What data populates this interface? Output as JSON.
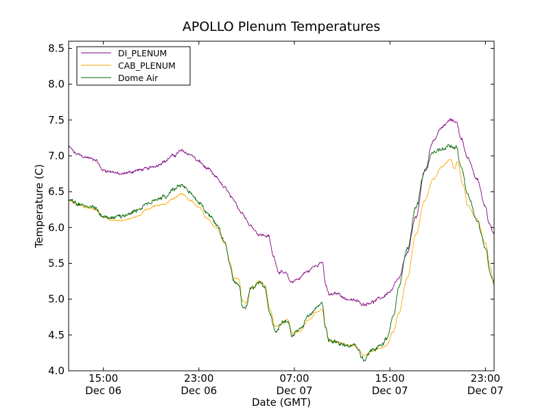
{
  "chart_data": {
    "type": "line",
    "title": "APOLLO Plenum Temperatures",
    "xlabel": "Date (GMT)",
    "ylabel": "Temperature (C)",
    "xlim": [
      11.0,
      35.5
    ],
    "ylim": [
      4.0,
      8.6
    ],
    "grid": false,
    "legend_position": "top-left",
    "yticks": [
      {
        "value": 4.0,
        "label": "4.0"
      },
      {
        "value": 4.5,
        "label": "4.5"
      },
      {
        "value": 5.0,
        "label": "5.0"
      },
      {
        "value": 5.5,
        "label": "5.5"
      },
      {
        "value": 6.0,
        "label": "6.0"
      },
      {
        "value": 6.5,
        "label": "6.5"
      },
      {
        "value": 7.0,
        "label": "7.0"
      },
      {
        "value": 7.5,
        "label": "7.5"
      },
      {
        "value": 8.0,
        "label": "8.0"
      },
      {
        "value": 8.5,
        "label": "8.5"
      }
    ],
    "xticks": [
      {
        "value": 13,
        "line1": "15:00",
        "line2": "Dec 06"
      },
      {
        "value": 18.5,
        "line1": "23:00",
        "line2": "Dec 06"
      },
      {
        "value": 24,
        "line1": "07:00",
        "line2": "Dec 07"
      },
      {
        "value": 29.5,
        "line1": "15:00",
        "line2": "Dec 07"
      },
      {
        "value": 35,
        "line1": "23:00",
        "line2": "Dec 07"
      }
    ],
    "series": [
      {
        "name": "DI_PLENUM",
        "color": "#800080",
        "noise": 0.025,
        "points": [
          [
            11.0,
            7.12
          ],
          [
            11.5,
            7.02
          ],
          [
            12.0,
            6.98
          ],
          [
            12.5,
            6.95
          ],
          [
            13.0,
            6.8
          ],
          [
            13.5,
            6.78
          ],
          [
            14.0,
            6.74
          ],
          [
            14.5,
            6.77
          ],
          [
            15.0,
            6.8
          ],
          [
            15.5,
            6.82
          ],
          [
            16.0,
            6.86
          ],
          [
            16.5,
            6.92
          ],
          [
            17.0,
            7.0
          ],
          [
            17.5,
            7.07
          ],
          [
            18.0,
            7.02
          ],
          [
            18.5,
            6.92
          ],
          [
            19.0,
            6.82
          ],
          [
            19.5,
            6.7
          ],
          [
            20.0,
            6.55
          ],
          [
            20.5,
            6.38
          ],
          [
            21.0,
            6.2
          ],
          [
            21.5,
            6.02
          ],
          [
            22.0,
            5.9
          ],
          [
            22.5,
            5.88
          ],
          [
            22.8,
            5.6
          ],
          [
            23.1,
            5.38
          ],
          [
            23.5,
            5.36
          ],
          [
            23.8,
            5.24
          ],
          [
            24.2,
            5.28
          ],
          [
            24.7,
            5.38
          ],
          [
            25.3,
            5.48
          ],
          [
            25.6,
            5.52
          ],
          [
            25.8,
            5.2
          ],
          [
            26.0,
            5.06
          ],
          [
            26.5,
            5.08
          ],
          [
            27.0,
            5.0
          ],
          [
            27.5,
            4.98
          ],
          [
            28.0,
            4.93
          ],
          [
            28.5,
            4.96
          ],
          [
            29.0,
            5.02
          ],
          [
            29.5,
            5.1
          ],
          [
            30.0,
            5.28
          ],
          [
            30.5,
            5.65
          ],
          [
            31.0,
            6.15
          ],
          [
            31.5,
            6.78
          ],
          [
            32.0,
            7.22
          ],
          [
            32.5,
            7.4
          ],
          [
            33.0,
            7.5
          ],
          [
            33.3,
            7.48
          ],
          [
            33.6,
            7.25
          ],
          [
            34.0,
            6.95
          ],
          [
            34.5,
            6.68
          ],
          [
            35.0,
            6.3
          ],
          [
            35.2,
            6.08
          ],
          [
            35.5,
            5.9
          ]
        ]
      },
      {
        "name": "CAB_PLENUM",
        "color": "#ffa500",
        "noise": 0.012,
        "points": [
          [
            11.0,
            6.38
          ],
          [
            11.5,
            6.32
          ],
          [
            12.0,
            6.28
          ],
          [
            12.5,
            6.25
          ],
          [
            13.0,
            6.15
          ],
          [
            13.5,
            6.1
          ],
          [
            14.0,
            6.1
          ],
          [
            14.5,
            6.12
          ],
          [
            15.0,
            6.16
          ],
          [
            15.5,
            6.25
          ],
          [
            16.0,
            6.3
          ],
          [
            16.5,
            6.32
          ],
          [
            17.0,
            6.4
          ],
          [
            17.5,
            6.47
          ],
          [
            18.0,
            6.38
          ],
          [
            18.5,
            6.28
          ],
          [
            19.0,
            6.12
          ],
          [
            19.5,
            6.0
          ],
          [
            20.0,
            5.78
          ],
          [
            20.3,
            5.5
          ],
          [
            20.5,
            5.3
          ],
          [
            20.8,
            5.28
          ],
          [
            21.0,
            4.98
          ],
          [
            21.2,
            4.95
          ],
          [
            21.5,
            5.15
          ],
          [
            22.0,
            5.25
          ],
          [
            22.3,
            5.2
          ],
          [
            22.6,
            4.85
          ],
          [
            22.9,
            4.62
          ],
          [
            23.3,
            4.66
          ],
          [
            23.6,
            4.72
          ],
          [
            23.9,
            4.52
          ],
          [
            24.3,
            4.55
          ],
          [
            24.8,
            4.7
          ],
          [
            25.3,
            4.82
          ],
          [
            25.6,
            4.86
          ],
          [
            25.8,
            4.6
          ],
          [
            26.0,
            4.42
          ],
          [
            26.5,
            4.4
          ],
          [
            27.0,
            4.36
          ],
          [
            27.5,
            4.35
          ],
          [
            28.0,
            4.22
          ],
          [
            28.5,
            4.28
          ],
          [
            29.0,
            4.32
          ],
          [
            29.3,
            4.35
          ],
          [
            29.7,
            4.55
          ],
          [
            30.0,
            4.8
          ],
          [
            30.5,
            5.3
          ],
          [
            31.0,
            5.9
          ],
          [
            31.5,
            6.38
          ],
          [
            32.0,
            6.68
          ],
          [
            32.5,
            6.85
          ],
          [
            33.0,
            6.95
          ],
          [
            33.2,
            6.82
          ],
          [
            33.4,
            6.92
          ],
          [
            33.7,
            6.6
          ],
          [
            34.0,
            6.3
          ],
          [
            34.5,
            6.12
          ],
          [
            35.0,
            5.78
          ],
          [
            35.3,
            5.42
          ],
          [
            35.5,
            5.18
          ]
        ]
      },
      {
        "name": "Dome Air",
        "color": "#006400",
        "noise": 0.035,
        "points": [
          [
            11.0,
            6.4
          ],
          [
            11.5,
            6.32
          ],
          [
            12.0,
            6.3
          ],
          [
            12.5,
            6.27
          ],
          [
            13.0,
            6.15
          ],
          [
            13.5,
            6.14
          ],
          [
            14.0,
            6.16
          ],
          [
            14.5,
            6.2
          ],
          [
            15.0,
            6.25
          ],
          [
            15.5,
            6.32
          ],
          [
            16.0,
            6.4
          ],
          [
            16.5,
            6.42
          ],
          [
            17.0,
            6.52
          ],
          [
            17.5,
            6.6
          ],
          [
            18.0,
            6.48
          ],
          [
            18.5,
            6.35
          ],
          [
            19.0,
            6.2
          ],
          [
            19.5,
            6.05
          ],
          [
            20.0,
            5.8
          ],
          [
            20.3,
            5.48
          ],
          [
            20.5,
            5.25
          ],
          [
            20.8,
            5.22
          ],
          [
            21.0,
            4.92
          ],
          [
            21.2,
            4.88
          ],
          [
            21.5,
            5.15
          ],
          [
            22.0,
            5.22
          ],
          [
            22.3,
            5.15
          ],
          [
            22.6,
            4.78
          ],
          [
            22.9,
            4.55
          ],
          [
            23.3,
            4.68
          ],
          [
            23.6,
            4.7
          ],
          [
            23.9,
            4.48
          ],
          [
            24.3,
            4.58
          ],
          [
            24.8,
            4.75
          ],
          [
            25.3,
            4.88
          ],
          [
            25.6,
            4.95
          ],
          [
            25.8,
            4.6
          ],
          [
            26.0,
            4.42
          ],
          [
            26.5,
            4.4
          ],
          [
            27.0,
            4.35
          ],
          [
            27.5,
            4.35
          ],
          [
            28.0,
            4.15
          ],
          [
            28.5,
            4.3
          ],
          [
            29.0,
            4.35
          ],
          [
            29.3,
            4.45
          ],
          [
            29.7,
            4.75
          ],
          [
            30.0,
            5.15
          ],
          [
            30.5,
            5.7
          ],
          [
            31.0,
            6.28
          ],
          [
            31.5,
            6.8
          ],
          [
            32.0,
            7.05
          ],
          [
            32.5,
            7.1
          ],
          [
            33.0,
            7.15
          ],
          [
            33.3,
            7.12
          ],
          [
            33.6,
            6.85
          ],
          [
            34.0,
            6.45
          ],
          [
            34.5,
            6.1
          ],
          [
            35.0,
            5.72
          ],
          [
            35.3,
            5.35
          ],
          [
            35.5,
            5.2
          ]
        ]
      }
    ]
  }
}
